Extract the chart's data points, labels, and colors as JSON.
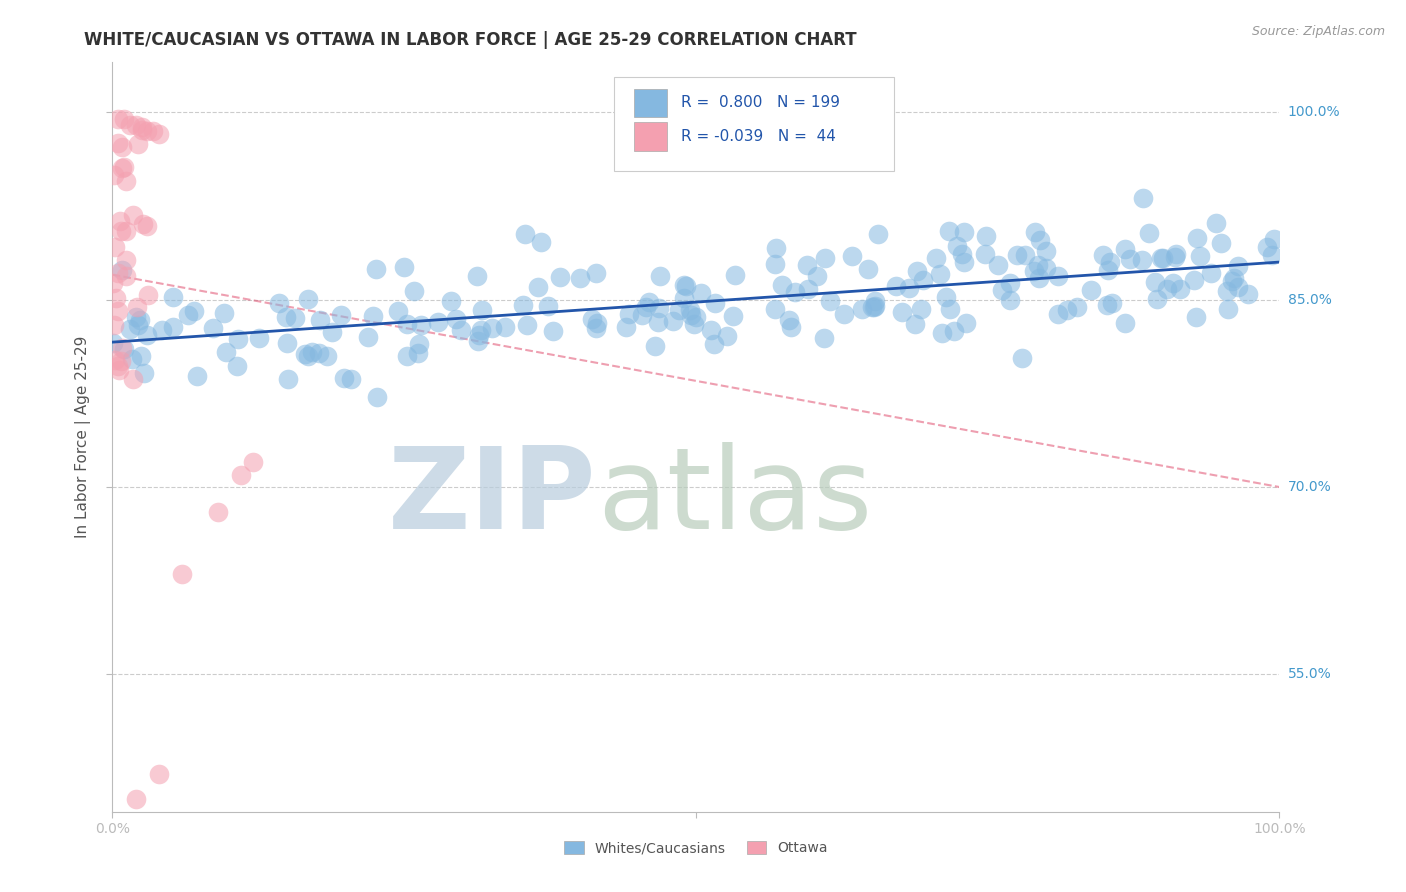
{
  "title": "WHITE/CAUCASIAN VS OTTAWA IN LABOR FORCE | AGE 25-29 CORRELATION CHART",
  "source": "Source: ZipAtlas.com",
  "ylabel": "In Labor Force | Age 25-29",
  "xlim": [
    0.0,
    1.0
  ],
  "ylim": [
    0.44,
    1.04
  ],
  "yticks": [
    0.55,
    0.7,
    0.85,
    1.0
  ],
  "ytick_labels": [
    "55.0%",
    "70.0%",
    "85.0%",
    "100.0%"
  ],
  "blue_R": 0.8,
  "blue_N": 199,
  "pink_R": -0.039,
  "pink_N": 44,
  "legend_labels": [
    "Whites/Caucasians",
    "Ottawa"
  ],
  "blue_color": "#85b8e0",
  "pink_color": "#f4a0b0",
  "blue_line_color": "#2255aa",
  "pink_line_color": "#e05070",
  "title_color": "#333333",
  "axis_label_color": "#555555",
  "grid_color": "#cccccc",
  "right_label_color": "#4499cc",
  "legend_text_color": "#2255aa",
  "watermark_zip_color": "#b8ccdd",
  "watermark_atlas_color": "#b8ccbb"
}
